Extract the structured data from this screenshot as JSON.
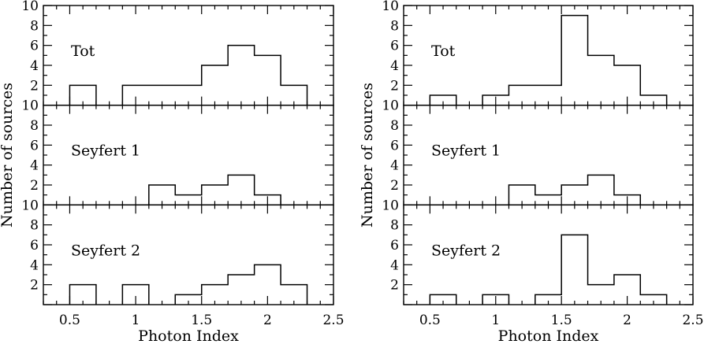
{
  "chart_data": [
    {
      "type": "histogram",
      "xlabel": "Photon Index",
      "ylabel": "Number of sources",
      "xlim": [
        0.3,
        2.5
      ],
      "ylim": [
        0,
        10
      ],
      "bin_edges": [
        0.5,
        0.7,
        0.9,
        1.1,
        1.3,
        1.5,
        1.7,
        1.9,
        2.1,
        2.3
      ],
      "x_ticks": [
        "0.5",
        "1",
        "1.5",
        "2",
        "2.5"
      ],
      "y_ticks_top": [
        "2",
        "4",
        "6",
        "8",
        "10"
      ],
      "y_ticks": [
        "2",
        "4",
        "6",
        "8",
        "10"
      ],
      "panels": [
        {
          "label": "Tot",
          "counts": [
            2,
            0,
            2,
            2,
            2,
            4,
            6,
            5,
            2
          ]
        },
        {
          "label": "Seyfert 1",
          "counts": [
            0,
            0,
            0,
            2,
            1,
            2,
            3,
            1,
            0
          ]
        },
        {
          "label": "Seyfert 2",
          "counts": [
            2,
            0,
            2,
            0,
            1,
            2,
            3,
            4,
            2
          ]
        }
      ]
    },
    {
      "type": "histogram",
      "xlabel": "Photon Index",
      "ylabel": "Number of sources",
      "xlim": [
        0.3,
        2.5
      ],
      "ylim": [
        0,
        10
      ],
      "bin_edges": [
        0.5,
        0.7,
        0.9,
        1.1,
        1.3,
        1.5,
        1.7,
        1.9,
        2.1,
        2.3
      ],
      "x_ticks": [
        "0.5",
        "1",
        "1.5",
        "2",
        "2.5"
      ],
      "y_ticks_top": [
        "2",
        "4",
        "6",
        "8",
        "10"
      ],
      "y_ticks": [
        "2",
        "4",
        "6",
        "8",
        "10"
      ],
      "panels": [
        {
          "label": "Tot",
          "counts": [
            1,
            0,
            1,
            2,
            2,
            9,
            5,
            4,
            1
          ]
        },
        {
          "label": "Seyfert 1",
          "counts": [
            0,
            0,
            0,
            2,
            1,
            2,
            3,
            1,
            0
          ]
        },
        {
          "label": "Seyfert 2",
          "counts": [
            1,
            0,
            1,
            0,
            1,
            7,
            2,
            3,
            1
          ]
        }
      ]
    }
  ]
}
